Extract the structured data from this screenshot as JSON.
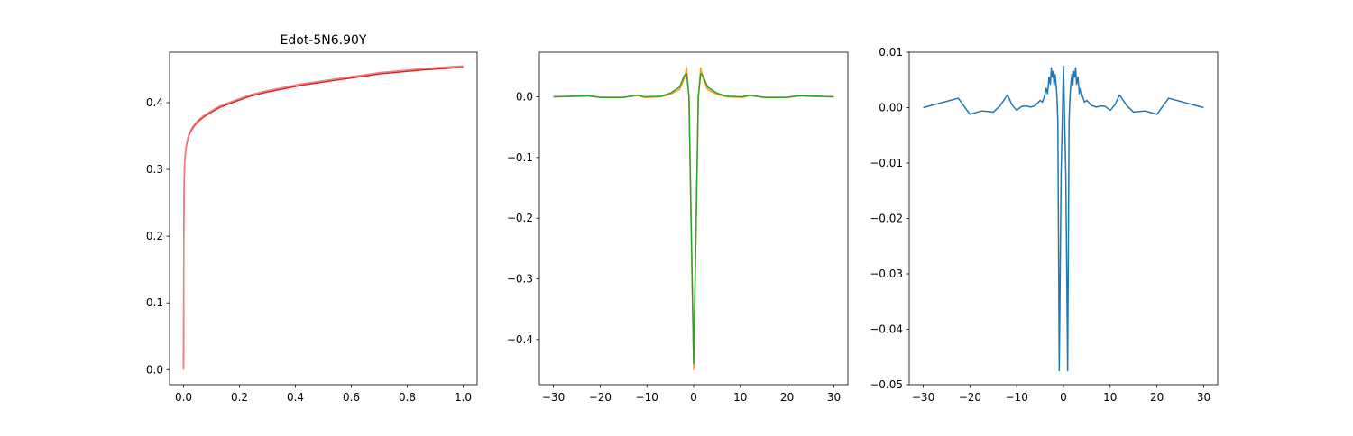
{
  "chart_data": [
    {
      "type": "line",
      "title": "Edot-5N6.90Y",
      "xlim": [
        -0.05,
        1.05
      ],
      "ylim": [
        -0.0226,
        0.4756
      ],
      "xticks": [
        0.0,
        0.2,
        0.4,
        0.6,
        0.8,
        1.0
      ],
      "xtick_labels": [
        "0.0",
        "0.2",
        "0.4",
        "0.6",
        "0.8",
        "1.0"
      ],
      "yticks": [
        0.0,
        0.1,
        0.2,
        0.3,
        0.4
      ],
      "ytick_labels": [
        "0.0",
        "0.1",
        "0.2",
        "0.3",
        "0.4"
      ],
      "series": [
        {
          "color": "#d62728",
          "x": [
            0.0,
            0.001,
            0.002,
            0.004,
            0.007,
            0.01,
            0.015,
            0.02,
            0.03,
            0.04,
            0.05,
            0.07,
            0.1,
            0.13,
            0.18,
            0.24,
            0.3,
            0.42,
            0.55,
            0.7,
            0.85,
            1.0
          ],
          "y": [
            0.0,
            0.2,
            0.28,
            0.31,
            0.325,
            0.335,
            0.345,
            0.352,
            0.36,
            0.366,
            0.371,
            0.378,
            0.386,
            0.393,
            0.401,
            0.41,
            0.416,
            0.426,
            0.434,
            0.443,
            0.449,
            0.453
          ]
        },
        {
          "color": "#f08080",
          "x": [
            0.0,
            0.001,
            0.002,
            0.004,
            0.007,
            0.01,
            0.015,
            0.02,
            0.03,
            0.04,
            0.05,
            0.07,
            0.1,
            0.13,
            0.18,
            0.24,
            0.3,
            0.42,
            0.55,
            0.7,
            0.85,
            1.0
          ],
          "y": [
            0.0,
            0.21,
            0.285,
            0.313,
            0.328,
            0.337,
            0.347,
            0.354,
            0.362,
            0.368,
            0.373,
            0.38,
            0.388,
            0.395,
            0.403,
            0.412,
            0.418,
            0.428,
            0.436,
            0.445,
            0.451,
            0.455
          ]
        }
      ]
    },
    {
      "type": "line",
      "title": "",
      "xlim": [
        -33,
        33
      ],
      "ylim": [
        -0.4745,
        0.0735
      ],
      "xticks": [
        -30,
        -20,
        -10,
        0,
        10,
        20,
        30
      ],
      "xtick_labels": [
        "−30",
        "−20",
        "−10",
        "0",
        "10",
        "20",
        "30"
      ],
      "yticks": [
        0.0,
        -0.1,
        -0.2,
        -0.3,
        -0.4
      ],
      "ytick_labels": [
        "0.0",
        "−0.1",
        "−0.2",
        "−0.3",
        "−0.4"
      ],
      "series": [
        {
          "color": "#ff9f1c",
          "x": [
            -30,
            -22.5,
            -20,
            -15,
            -12,
            -10.5,
            -7,
            -5,
            -3,
            -2,
            -1.5,
            -1,
            0,
            1,
            1.5,
            2,
            3,
            5,
            7,
            10.5,
            12,
            15,
            20,
            22.5,
            30
          ],
          "y": [
            0.0,
            0.001,
            -0.001,
            -0.001,
            0.002,
            -0.001,
            0.0,
            0.004,
            0.012,
            0.03,
            0.048,
            0.0,
            -0.45,
            0.0,
            0.048,
            0.03,
            0.012,
            0.004,
            0.0,
            -0.001,
            0.002,
            -0.001,
            -0.001,
            0.001,
            0.0
          ]
        },
        {
          "color": "#2ca02c",
          "x": [
            -30,
            -22.5,
            -20,
            -15,
            -12,
            -10.5,
            -7,
            -5,
            -3,
            -2,
            -1.5,
            -1,
            0,
            1,
            1.5,
            2,
            3,
            5,
            7,
            10.5,
            12,
            15,
            20,
            22.5,
            30
          ],
          "y": [
            0.0,
            0.002,
            -0.001,
            -0.001,
            0.003,
            0.0,
            0.001,
            0.006,
            0.016,
            0.035,
            0.038,
            0.0,
            -0.44,
            0.0,
            0.038,
            0.035,
            0.016,
            0.006,
            0.001,
            0.0,
            0.003,
            -0.001,
            -0.001,
            0.002,
            0.0
          ]
        }
      ]
    },
    {
      "type": "line",
      "title": "",
      "xlim": [
        -33,
        33
      ],
      "ylim": [
        -0.05,
        0.01
      ],
      "xticks": [
        -30,
        -20,
        -10,
        0,
        10,
        20,
        30
      ],
      "xtick_labels": [
        "−30",
        "−20",
        "−10",
        "0",
        "10",
        "20",
        "30"
      ],
      "yticks": [
        0.01,
        0.0,
        -0.01,
        -0.02,
        -0.03,
        -0.04,
        -0.05
      ],
      "ytick_labels": [
        "0.01",
        "0.00",
        "−0.01",
        "−0.02",
        "−0.03",
        "−0.04",
        "−0.05"
      ],
      "series": [
        {
          "color": "#1f77b4",
          "x": [
            -30,
            -22.5,
            -20,
            -17.5,
            -15,
            -13.5,
            -12,
            -11,
            -10,
            -9,
            -8,
            -7,
            -6,
            -5,
            -4.5,
            -4,
            -3.7,
            -3.4,
            -3.1,
            -2.8,
            -2.6,
            -2.4,
            -2.2,
            -2.0,
            -1.8,
            -1.6,
            -1.4,
            -1.2,
            -0.9,
            -0.5,
            0,
            0.5,
            0.9,
            1.2,
            1.4,
            1.6,
            1.8,
            2.0,
            2.2,
            2.4,
            2.6,
            2.8,
            3.1,
            3.4,
            3.7,
            4,
            4.5,
            5,
            6,
            7,
            8,
            9,
            10,
            11,
            12,
            13.5,
            15,
            17.5,
            20,
            22.5,
            30
          ],
          "y": [
            0.0,
            0.0017,
            -0.0012,
            -0.0006,
            -0.0008,
            0.0004,
            0.0023,
            0.0005,
            -0.0005,
            0.0002,
            0.0003,
            0.0001,
            0.0004,
            0.0013,
            0.001,
            0.0022,
            0.0035,
            0.0025,
            0.0055,
            0.0042,
            0.0072,
            0.0055,
            0.0065,
            0.004,
            0.006,
            0.0045,
            0.002,
            -0.0025,
            -0.0475,
            -0.012,
            0.0075,
            -0.012,
            -0.0475,
            -0.0025,
            0.002,
            0.0045,
            0.006,
            0.004,
            0.0065,
            0.0055,
            0.0072,
            0.0042,
            0.0055,
            0.0025,
            0.0035,
            0.0022,
            0.001,
            0.0013,
            0.0004,
            0.0001,
            0.0003,
            0.0002,
            -0.0005,
            0.0005,
            0.0023,
            0.0004,
            -0.0008,
            -0.0006,
            -0.0012,
            0.0017,
            0.0
          ]
        }
      ]
    }
  ]
}
